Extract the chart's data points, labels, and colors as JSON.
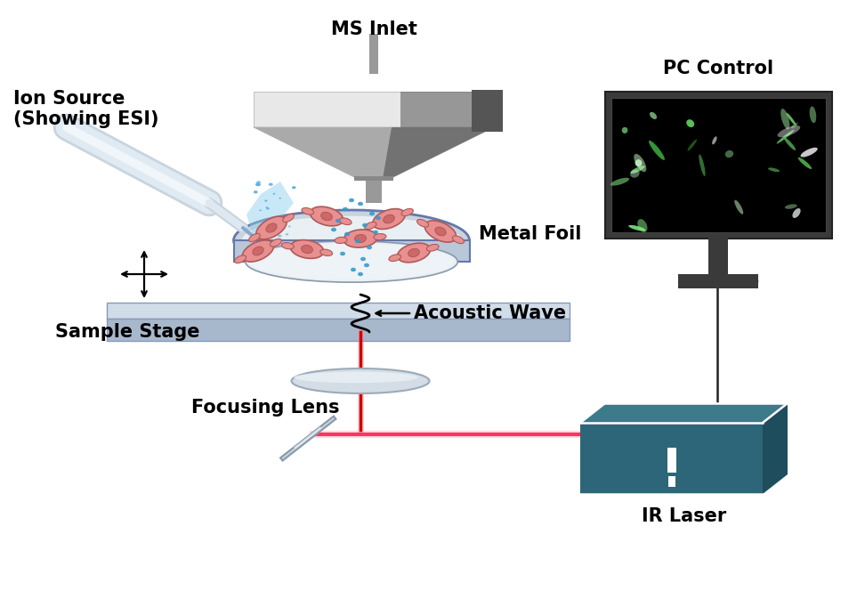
{
  "bg_color": "#ffffff",
  "labels": {
    "ms_inlet": "MS Inlet",
    "ion_source": "Ion Source\n(Showing ESI)",
    "metal_foil": "Metal Foil",
    "acoustic_wave": "Acoustic Wave",
    "sample_stage": "Sample Stage",
    "focusing_lens": "Focusing Lens",
    "ir_laser": "IR Laser",
    "pc_control": "PC Control"
  },
  "label_fontsize": 15,
  "label_fontweight": "bold",
  "colors": {
    "ms_tube": "#999999",
    "ms_cone_light": "#e8e8e8",
    "ms_cone_mid": "#aaaaaa",
    "ms_cone_dark": "#555555",
    "ms_block": "#cccccc",
    "ms_block_dark": "#666666",
    "dish_rim": "#8899aa",
    "dish_rim_dark": "#6677aa",
    "dish_inner": "#dce8f0",
    "dish_floor": "#e8f0f4",
    "dish_wall": "#c0cedd",
    "stage_top": "#d0dce8",
    "stage_side": "#a8b8cc",
    "cell_body": "#e89090",
    "cell_outline": "#b05858",
    "cell_nucleus": "#cc6868",
    "spray_blue": "#55aadd",
    "dots_blue": "#3399cc",
    "laser_red": "#cc0000",
    "laser_pink": "#ff6666",
    "lens_color": "#d0dce8",
    "lens_highlight": "#eef4f8",
    "mirror_body": "#c8d4de",
    "ir_box_front": "#2d6678",
    "ir_box_top": "#3d7a8a",
    "ir_box_right": "#1e4d5e",
    "ir_white": "#ffffff",
    "monitor_body": "#3a3a3a",
    "monitor_screen": "#000000",
    "cell_green": "#55cc55",
    "cell_white": "#dddddd",
    "wire_color": "#222222"
  }
}
